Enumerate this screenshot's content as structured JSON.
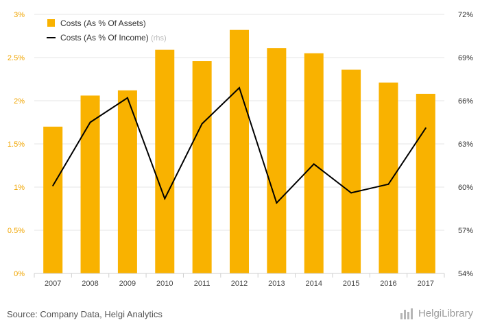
{
  "chart_data": {
    "type": "bar",
    "categories": [
      "2007",
      "2008",
      "2009",
      "2010",
      "2011",
      "2012",
      "2013",
      "2014",
      "2015",
      "2016",
      "2017"
    ],
    "series": [
      {
        "name": "Costs (As % Of Assets)",
        "type": "bar",
        "axis": "left",
        "color": "#f9b200",
        "values": [
          1.7,
          2.06,
          2.12,
          2.59,
          2.46,
          2.82,
          2.61,
          2.55,
          2.36,
          2.21,
          2.08
        ]
      },
      {
        "name": "Costs (As % Of Income)",
        "legend_suffix": "(rhs)",
        "type": "line",
        "axis": "right",
        "color": "#000000",
        "values": [
          60.1,
          64.5,
          66.2,
          59.2,
          64.4,
          66.9,
          58.9,
          61.6,
          59.6,
          60.2,
          64.1
        ]
      }
    ],
    "left_axis": {
      "ylim": [
        0,
        3
      ],
      "ticks": [
        0,
        0.5,
        1,
        1.5,
        2,
        2.5,
        3
      ],
      "tick_labels": [
        "0%",
        "0.5%",
        "1%",
        "1.5%",
        "2%",
        "2.5%",
        "3%"
      ]
    },
    "right_axis": {
      "ylim": [
        54,
        72
      ],
      "ticks": [
        54,
        57,
        60,
        63,
        66,
        69,
        72
      ],
      "tick_labels": [
        "54%",
        "57%",
        "60%",
        "63%",
        "66%",
        "69%",
        "72%"
      ]
    },
    "grid": true,
    "legend_position": "top-left",
    "colors": {
      "bar": "#f9b200",
      "line": "#000000",
      "grid": "#e6e6e6",
      "axis_text": "#f0a500",
      "right_axis_text": "#333333",
      "muted": "#bbbbbb"
    }
  },
  "footer": {
    "source": "Source: Company Data, Helgi Analytics",
    "brand": "HelgiLibrary"
  }
}
